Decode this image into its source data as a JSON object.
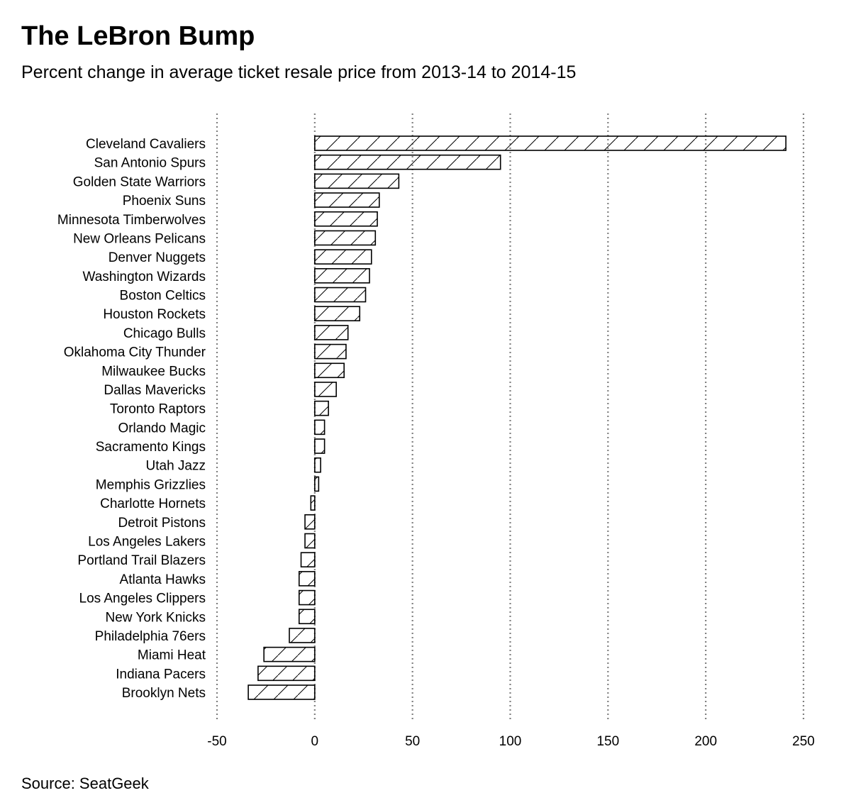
{
  "chart_data": {
    "type": "bar",
    "orientation": "horizontal",
    "title": "The LeBron Bump",
    "subtitle": "Percent change in average ticket resale price from 2013-14 to 2014-15",
    "source": "Source: SeatGeek",
    "categories": [
      "Cleveland Cavaliers",
      "San Antonio Spurs",
      "Golden State Warriors",
      "Phoenix Suns",
      "Minnesota Timberwolves",
      "New Orleans Pelicans",
      "Denver Nuggets",
      "Washington Wizards",
      "Boston Celtics",
      "Houston Rockets",
      "Chicago Bulls",
      "Oklahoma City Thunder",
      "Milwaukee Bucks",
      "Dallas Mavericks",
      "Toronto Raptors",
      "Orlando Magic",
      "Sacramento Kings",
      "Utah Jazz",
      "Memphis Grizzlies",
      "Charlotte Hornets",
      "Detroit Pistons",
      "Los Angeles Lakers",
      "Portland Trail Blazers",
      "Atlanta Hawks",
      "Los Angeles Clippers",
      "New York Knicks",
      "Philadelphia 76ers",
      "Miami Heat",
      "Indiana Pacers",
      "Brooklyn Nets"
    ],
    "values": [
      241,
      95,
      43,
      33,
      32,
      31,
      29,
      28,
      26,
      23,
      17,
      16,
      15,
      11,
      7,
      5,
      5,
      3,
      2,
      -2,
      -5,
      -5,
      -7,
      -8,
      -8,
      -8,
      -13,
      -26,
      -29,
      -34
    ],
    "xlim": [
      -50,
      250
    ],
    "xticks": [
      -50,
      0,
      50,
      100,
      150,
      200,
      250
    ],
    "xtick_labels": [
      "-50",
      "0",
      "50",
      "100",
      "150",
      "200",
      "250"
    ],
    "grid": "vertical dotted",
    "bar_fill": "diagonal hatch",
    "colors": {
      "bar_stroke": "#000000",
      "grid": "#808080",
      "background": "#ffffff"
    }
  }
}
